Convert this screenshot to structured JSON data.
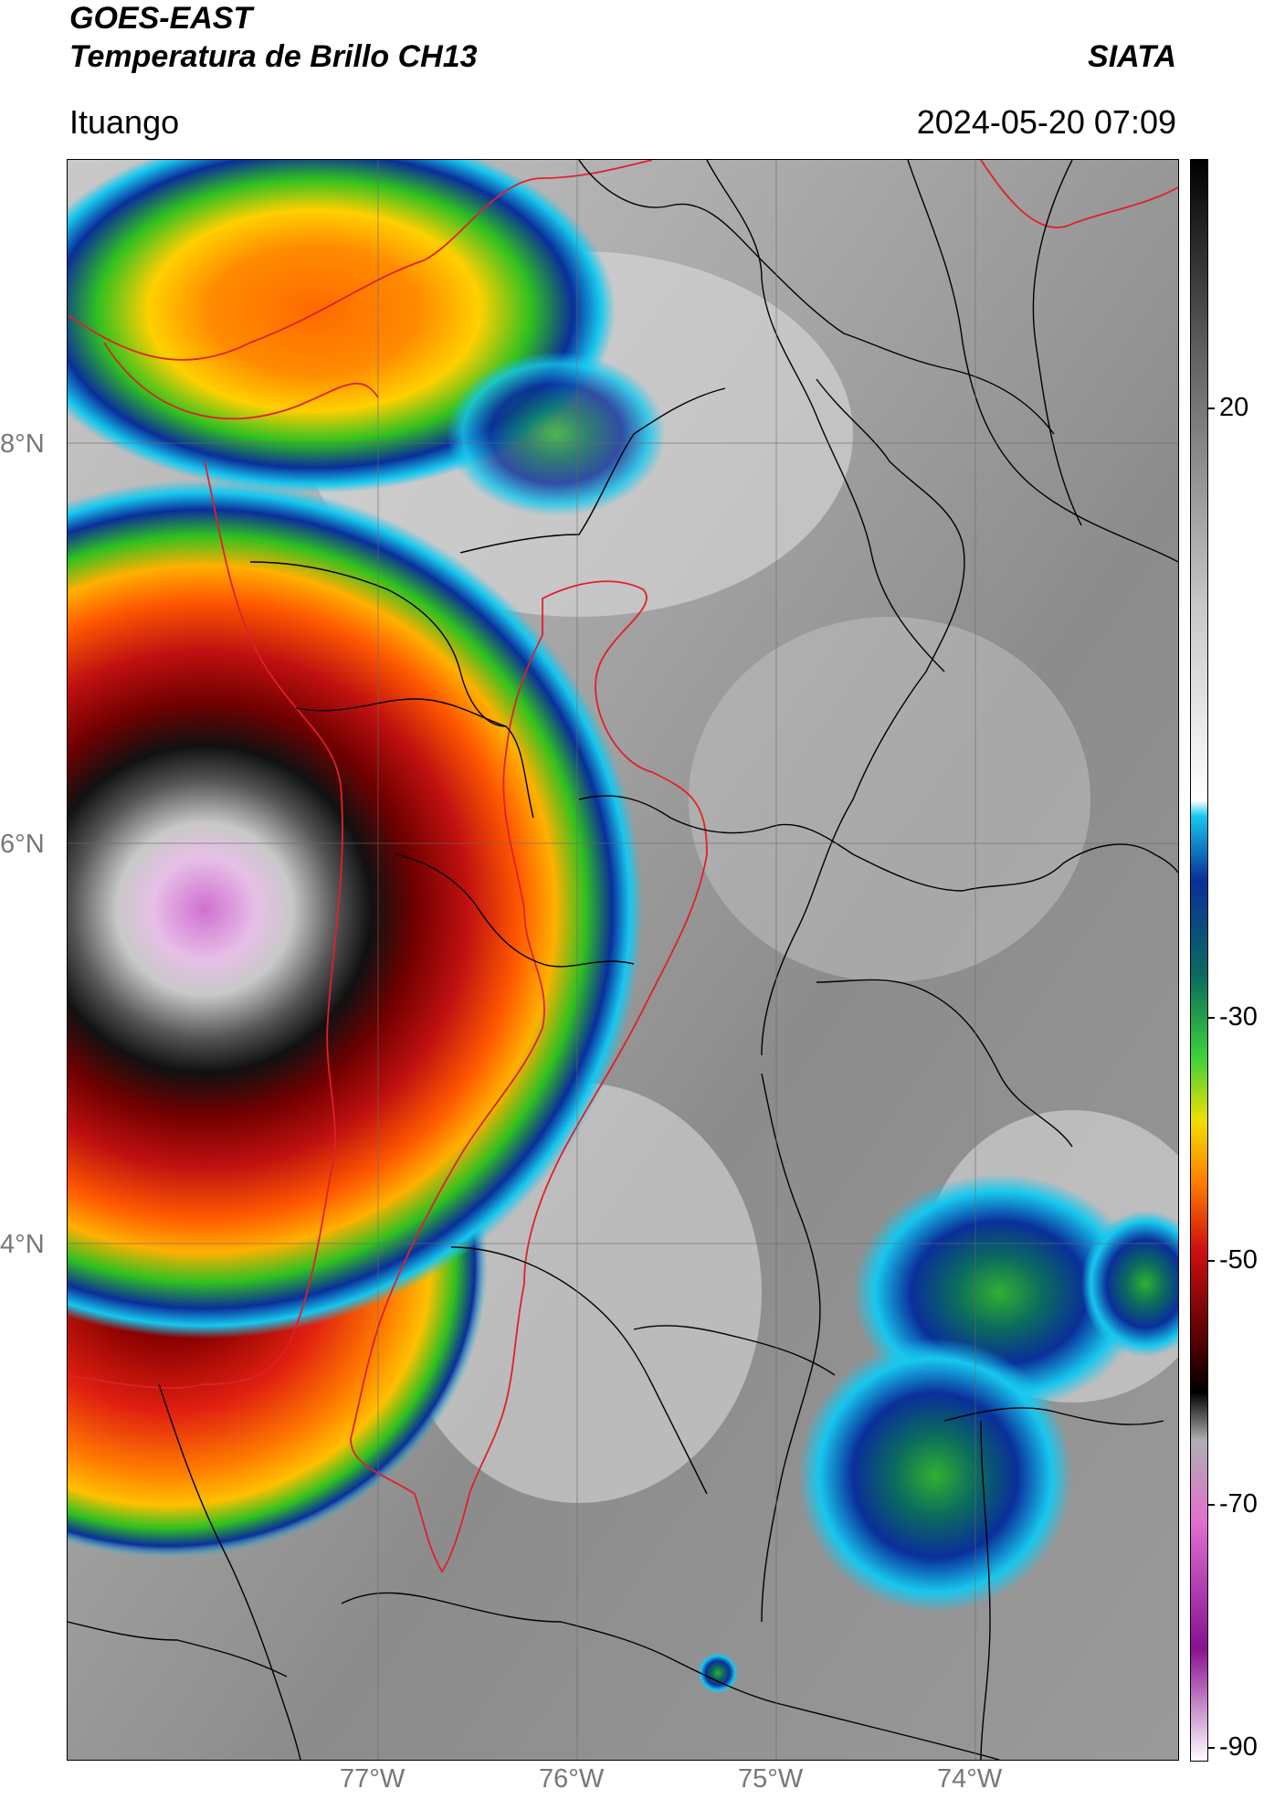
{
  "header": {
    "satellite": "GOES-EAST",
    "product": "Temperatura de Brillo CH13",
    "region": "Ituango",
    "org": "SIATA",
    "datetime": "2024-05-20 07:09"
  },
  "map": {
    "lon_labels": [
      "77°W",
      "76°W",
      "75°W",
      "74°W"
    ],
    "lat_labels": [
      "8°N",
      "6°N",
      "4°N"
    ],
    "colors": {
      "background_gray": "#9a9a9a",
      "border_black": "#000000",
      "border_red": "#e0202a",
      "storm_pink": "#d070d0",
      "storm_red": "#c01010",
      "storm_orange": "#ff6a00",
      "storm_yellow": "#ffd000",
      "storm_green": "#30c020",
      "storm_blue": "#0a2f9a",
      "storm_cyan": "#17c7ee"
    }
  },
  "colorbar": {
    "ticks": [
      "20",
      "-30",
      "-50",
      "-70",
      "-90"
    ],
    "colors": [
      "#000000",
      "#606060",
      "#c8c8c8",
      "#ffffff",
      "#17c7ee",
      "#0a2f9a",
      "#0b6b5e",
      "#3cd03c",
      "#f0e000",
      "#ff7a00",
      "#d01010",
      "#500000",
      "#000000",
      "#b0b0b0",
      "#e070d0",
      "#8a1090",
      "#ffffff"
    ]
  }
}
